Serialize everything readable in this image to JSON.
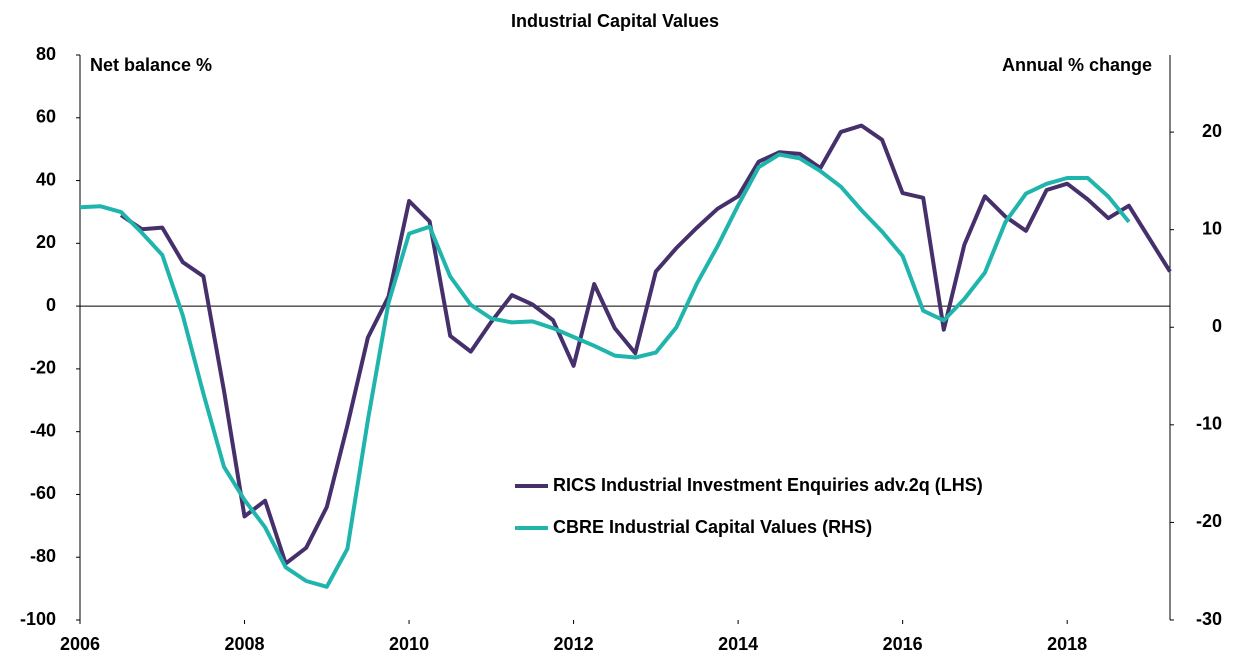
{
  "chart_data": {
    "type": "line",
    "title": "Industrial Capital Values",
    "y_label": "Net balance %",
    "y2_label": "Annual % change",
    "x": [
      2006,
      2006.25,
      2006.5,
      2006.75,
      2007,
      2007.25,
      2007.5,
      2007.75,
      2008,
      2008.25,
      2008.5,
      2008.75,
      2009,
      2009.25,
      2009.5,
      2009.75,
      2010,
      2010.25,
      2010.5,
      2010.75,
      2011,
      2011.25,
      2011.5,
      2011.75,
      2012,
      2012.25,
      2012.5,
      2012.75,
      2013,
      2013.25,
      2013.5,
      2013.75,
      2014,
      2014.25,
      2014.5,
      2014.75,
      2015,
      2015.25,
      2015.5,
      2015.75,
      2016,
      2016.25,
      2016.5,
      2016.75,
      2017,
      2017.25,
      2017.5,
      2017.75,
      2018,
      2018.25,
      2018.5,
      2018.75,
      2019,
      2019.25
    ],
    "series": [
      {
        "name": "RICS Industrial Investment Enquiries adv.2q (LHS)",
        "color": "#46306b",
        "axis": "y",
        "values": [
          null,
          null,
          29,
          24.5,
          25,
          14,
          9.5,
          -27,
          -67,
          -62,
          -82,
          -77,
          -64,
          -38,
          -10,
          3,
          33.5,
          27,
          -9.5,
          -14.5,
          -5,
          3.5,
          0.5,
          -4.5,
          -19,
          7,
          -7,
          -15,
          11,
          18.5,
          25,
          31,
          35,
          46,
          49,
          48.5,
          44,
          55.5,
          57.5,
          53,
          36,
          34.5,
          -7.5,
          19.5,
          35,
          28.5,
          24,
          37,
          39,
          34,
          28,
          32,
          21.5,
          11
        ]
      },
      {
        "name": "CBRE Industrial Capital Values (RHS)",
        "color": "#1fb5ad",
        "axis": "y2",
        "values": [
          12.3,
          12.4,
          11.8,
          9.7,
          7.4,
          1.2,
          -6.8,
          -14.3,
          -17.7,
          -20.5,
          -24.6,
          -26,
          -26.6,
          -22.7,
          -9.5,
          2.5,
          9.6,
          10.3,
          5.2,
          2.3,
          0.9,
          0.5,
          0.6,
          -0.1,
          -1,
          -1.9,
          -2.9,
          -3.1,
          -2.6,
          0,
          4.5,
          8.3,
          12.5,
          16.4,
          17.7,
          17.3,
          16,
          14.4,
          12,
          9.8,
          7.3,
          1.7,
          0.7,
          2.9,
          5.6,
          10.8,
          13.7,
          14.7,
          15.3,
          15.3,
          13.4,
          10.8,
          null,
          null
        ]
      }
    ],
    "xlim": [
      2006,
      2019.25
    ],
    "xticks": [
      2006,
      2008,
      2010,
      2012,
      2014,
      2016,
      2018
    ],
    "ylim": [
      -100,
      80
    ],
    "yticks": [
      -100,
      -80,
      -60,
      -40,
      -20,
      0,
      20,
      40,
      60,
      80
    ],
    "y2lim": [
      -30,
      27.9
    ],
    "y2ticks": [
      -30,
      -20,
      -10,
      0,
      10,
      20
    ],
    "legend": "bottom-right"
  }
}
